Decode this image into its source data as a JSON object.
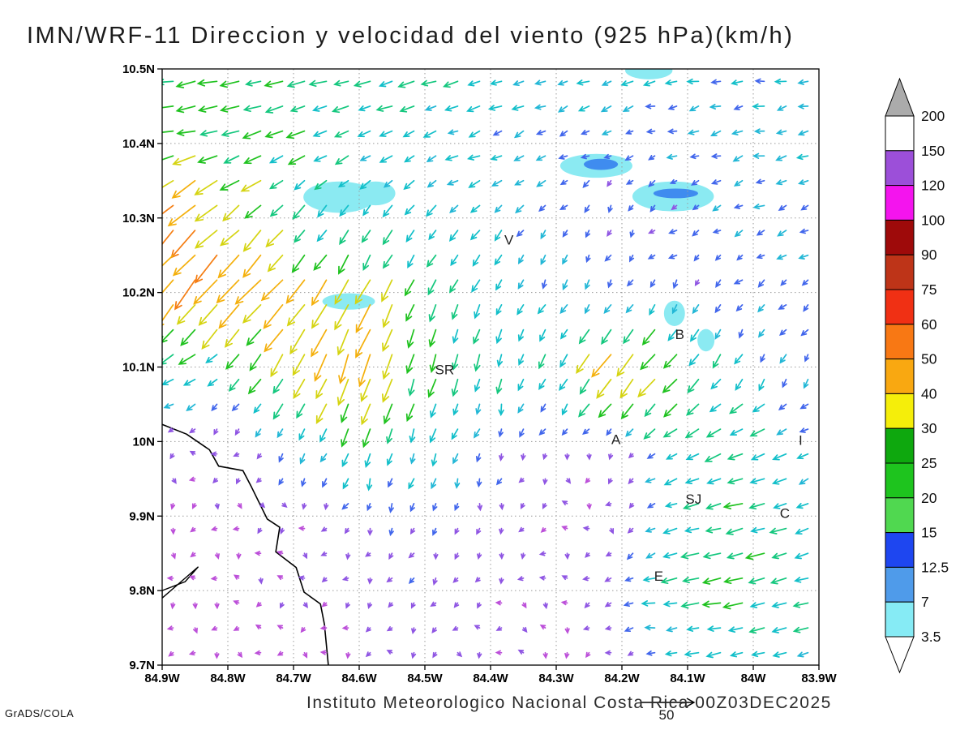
{
  "title": "IMN/WRF-11 Direccion y velocidad del viento (925 hPa)(km/h)",
  "footer": {
    "institute": "Instituto Meteorologico Nacional Costa Rica 00Z03DEC2025",
    "credit": "GrADS/COLA",
    "ref_vector_label": "50"
  },
  "chart_data": {
    "type": "vector_field_map",
    "variable": "Direccion y velocidad del viento",
    "level": "925 hPa",
    "units": "km/h",
    "lon_range": [
      -84.9,
      -83.9
    ],
    "lat_range": [
      9.7,
      10.5
    ],
    "x_tick_labels": [
      "84.9W",
      "84.8W",
      "84.7W",
      "84.6W",
      "84.5W",
      "84.4W",
      "84.3W",
      "84.2W",
      "84.1W",
      "84W",
      "83.9W"
    ],
    "y_tick_labels": [
      "10.5N",
      "10.4N",
      "10.3N",
      "10.2N",
      "10.1N",
      "10N",
      "9.9N",
      "9.8N",
      "9.7N"
    ],
    "legend": {
      "levels": [
        "200",
        "150",
        "120",
        "100",
        "90",
        "75",
        "60",
        "50",
        "40",
        "30",
        "25",
        "20",
        "15",
        "12.5",
        "7",
        "3.5"
      ],
      "colors": [
        "#FFFFFF",
        "#9C4FD9",
        "#F414EE",
        "#9E0A0A",
        "#BE3418",
        "#F03014",
        "#F87814",
        "#F9A811",
        "#F5EE0A",
        "#0EA80E",
        "#1EC41E",
        "#50D850",
        "#1E46F0",
        "#4F9BEA",
        "#86EBF5"
      ],
      "above_color": "#ABABAB",
      "below_color": "#FFFFFF"
    },
    "arrow_colors": [
      {
        "max": 5,
        "color": "#BC4FD9"
      },
      {
        "max": 9,
        "color": "#8F55E3"
      },
      {
        "max": 12.5,
        "color": "#4166EC"
      },
      {
        "max": 15,
        "color": "#22B7D6"
      },
      {
        "max": 20,
        "color": "#12BFC9"
      },
      {
        "max": 25,
        "color": "#14C77E"
      },
      {
        "max": 30,
        "color": "#1FC21F"
      },
      {
        "max": 40,
        "color": "#D5D411"
      },
      {
        "max": 50,
        "color": "#F4B00C"
      },
      {
        "max": 62,
        "color": "#F57D12"
      },
      {
        "max": 1000,
        "color": "#EC3517"
      }
    ],
    "wind_grid": {
      "lons": [
        -84.9,
        -84.8,
        -84.7,
        -84.6,
        -84.5,
        -84.4,
        -84.3,
        -84.2,
        -84.1,
        -84.0,
        -83.9
      ],
      "lats": [
        10.5,
        10.4,
        10.3,
        10.2,
        10.1,
        10.0,
        9.9,
        9.8,
        9.7
      ],
      "uv": [
        [
          [
            -26,
            -4
          ],
          [
            -24,
            -5
          ],
          [
            -25,
            -6
          ],
          [
            -22,
            -5
          ],
          [
            -20,
            -5
          ],
          [
            -18,
            -4
          ],
          [
            -16,
            -4
          ],
          [
            -15,
            -4
          ],
          [
            -14,
            -3
          ],
          [
            -14,
            -3
          ],
          [
            -13,
            -3
          ]
        ],
        [
          [
            -28,
            -6
          ],
          [
            -26,
            -7
          ],
          [
            -22,
            -8
          ],
          [
            -16,
            -8
          ],
          [
            -14,
            -7
          ],
          [
            -13,
            -6
          ],
          [
            -11,
            -5
          ],
          [
            -9,
            -4
          ],
          [
            -12,
            -4
          ],
          [
            -13,
            -3
          ],
          [
            -13,
            -3
          ]
        ],
        [
          [
            -45,
            -45
          ],
          [
            -28,
            -26
          ],
          [
            -14,
            -18
          ],
          [
            -10,
            -14
          ],
          [
            -12,
            -13
          ],
          [
            -12,
            -11
          ],
          [
            -8,
            -9
          ],
          [
            -6,
            -7
          ],
          [
            -8,
            -5
          ],
          [
            -12,
            -5
          ],
          [
            -12,
            -4
          ]
        ],
        [
          [
            -24,
            -32
          ],
          [
            -30,
            -36
          ],
          [
            -28,
            -32
          ],
          [
            -18,
            -36
          ],
          [
            -10,
            -22
          ],
          [
            -8,
            -15
          ],
          [
            -6,
            -11
          ],
          [
            -6,
            -9
          ],
          [
            -5,
            -9
          ],
          [
            -8,
            -7
          ],
          [
            -9,
            -6
          ]
        ],
        [
          [
            -20,
            -9
          ],
          [
            -14,
            -11
          ],
          [
            -17,
            -30
          ],
          [
            -14,
            -42
          ],
          [
            -8,
            -26
          ],
          [
            -5,
            -19
          ],
          [
            -10,
            -17
          ],
          [
            -28,
            -36
          ],
          [
            -17,
            -21
          ],
          [
            -6,
            -13
          ],
          [
            -5,
            -11
          ]
        ],
        [
          [
            -4,
            -3
          ],
          [
            -5,
            -4
          ],
          [
            -6,
            -11
          ],
          [
            -6,
            -19
          ],
          [
            -5,
            -16
          ],
          [
            -4,
            -11
          ],
          [
            -3,
            -6
          ],
          [
            -4,
            -4
          ],
          [
            -19,
            -11
          ],
          [
            -22,
            -8
          ],
          [
            -10,
            -6
          ]
        ],
        [
          [
            -3,
            -3
          ],
          [
            -3,
            -3
          ],
          [
            -3,
            -4
          ],
          [
            -4,
            -7
          ],
          [
            -4,
            -9
          ],
          [
            -3,
            -7
          ],
          [
            -3,
            -4
          ],
          [
            -3,
            -3
          ],
          [
            -20,
            -5
          ],
          [
            -22,
            -6
          ],
          [
            -16,
            -6
          ]
        ],
        [
          [
            -3,
            -3
          ],
          [
            -3,
            -3
          ],
          [
            -3,
            -4
          ],
          [
            -3,
            -5
          ],
          [
            -4,
            -7
          ],
          [
            -3,
            -5
          ],
          [
            -3,
            -4
          ],
          [
            -11,
            -4
          ],
          [
            -22,
            -3
          ],
          [
            -25,
            -5
          ],
          [
            -18,
            -5
          ]
        ],
        [
          [
            -3,
            -3
          ],
          [
            -3,
            -3
          ],
          [
            -3,
            -3
          ],
          [
            -3,
            -4
          ],
          [
            -4,
            -5
          ],
          [
            -3,
            -4
          ],
          [
            -3,
            -3
          ],
          [
            -4,
            -3
          ],
          [
            -15,
            -3
          ],
          [
            -18,
            -4
          ],
          [
            -16,
            -4
          ]
        ]
      ]
    },
    "shaded_patches": [
      {
        "lon": -84.63,
        "lat": 10.328,
        "rx": 0.055,
        "ry": 0.021,
        "color": "#8BEAF2"
      },
      {
        "lon": -84.575,
        "lat": 10.333,
        "rx": 0.03,
        "ry": 0.016,
        "color": "#8BEAF2"
      },
      {
        "lon": -84.239,
        "lat": 10.37,
        "rx": 0.055,
        "ry": 0.016,
        "color": "#8BEAF2"
      },
      {
        "lon": -84.122,
        "lat": 10.329,
        "rx": 0.062,
        "ry": 0.02,
        "color": "#8BEAF2"
      },
      {
        "lon": -84.159,
        "lat": 10.498,
        "rx": 0.036,
        "ry": 0.012,
        "color": "#8BEAF2"
      },
      {
        "lon": -84.616,
        "lat": 10.188,
        "rx": 0.04,
        "ry": 0.011,
        "color": "#8BEAF2"
      },
      {
        "lon": -84.12,
        "lat": 10.172,
        "rx": 0.016,
        "ry": 0.017,
        "color": "#8BEAF2"
      },
      {
        "lon": -84.072,
        "lat": 10.136,
        "rx": 0.013,
        "ry": 0.015,
        "color": "#8BEAF2"
      },
      {
        "lon": -84.232,
        "lat": 10.372,
        "rx": 0.026,
        "ry": 0.0075,
        "color": "#3F8CEF"
      },
      {
        "lon": -84.118,
        "lat": 10.333,
        "rx": 0.034,
        "ry": 0.0065,
        "color": "#3F8CEF"
      }
    ],
    "coastline": [
      [
        -84.9,
        10.023
      ],
      [
        -84.863,
        10.01
      ],
      [
        -84.828,
        9.989
      ],
      [
        -84.814,
        9.967
      ],
      [
        -84.777,
        9.961
      ],
      [
        -84.764,
        9.939
      ],
      [
        -84.74,
        9.896
      ],
      [
        -84.721,
        9.885
      ],
      [
        -84.727,
        9.852
      ],
      [
        -84.696,
        9.831
      ],
      [
        -84.684,
        9.798
      ],
      [
        -84.659,
        9.782
      ],
      [
        -84.653,
        9.755
      ],
      [
        -84.647,
        9.7
      ]
    ],
    "peninsula": [
      [
        -84.9,
        9.79
      ],
      [
        -84.845,
        9.832
      ],
      [
        -84.865,
        9.812
      ],
      [
        -84.9,
        9.8
      ]
    ],
    "city_labels": [
      {
        "label": "V",
        "lon": -84.372,
        "lat": 10.271
      },
      {
        "label": "B",
        "lon": -84.112,
        "lat": 10.144
      },
      {
        "label": "SR",
        "lon": -84.47,
        "lat": 10.097
      },
      {
        "label": "A",
        "lon": -84.209,
        "lat": 10.003
      },
      {
        "label": "I",
        "lon": -83.928,
        "lat": 10.002
      },
      {
        "label": "SJ",
        "lon": -84.091,
        "lat": 9.923
      },
      {
        "label": "C",
        "lon": -83.952,
        "lat": 9.904
      },
      {
        "label": "E",
        "lon": -84.144,
        "lat": 9.82
      }
    ],
    "ref_vector_kmh": 50
  }
}
